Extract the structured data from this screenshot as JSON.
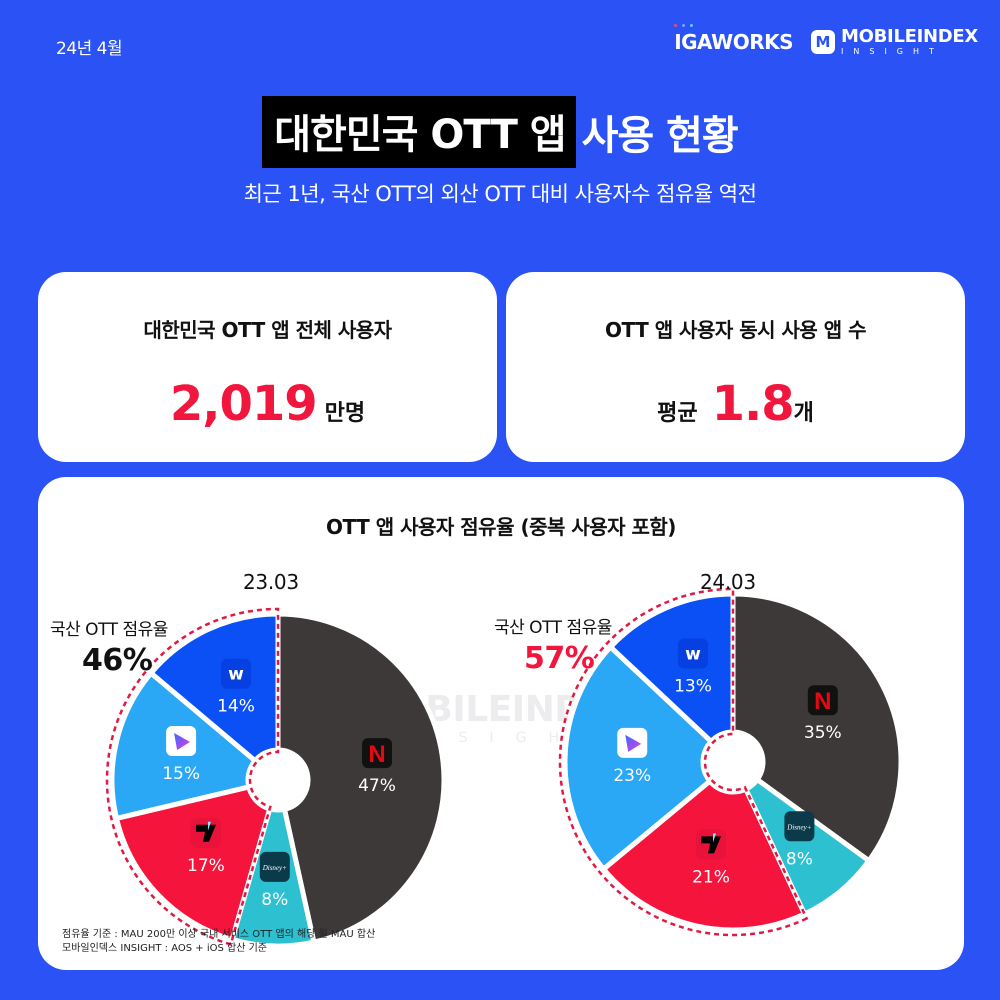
{
  "header": {
    "date": "24년 4월",
    "logo_igaworks": "IGAWORKS",
    "logo_mobileindex": "MOBILEINDEX",
    "logo_mobileindex_sub": "INSIGHT",
    "logo_mobileindex_badge": "M"
  },
  "title": {
    "highlight": "대한민국 OTT 앱",
    "rest": "사용 현황",
    "subtitle": "최근 1년, 국산 OTT의 외산 OTT 대비 사용자수 점유율 역전"
  },
  "cards": {
    "total_users": {
      "title": "대한민국 OTT 앱 전체 사용자",
      "value": "2,019",
      "unit": "만명"
    },
    "concurrent_apps": {
      "title": "OTT 앱 사용자 동시 사용 앱 수",
      "prefix": "평균",
      "value": "1.8",
      "unit": "개"
    }
  },
  "share_card": {
    "title": "OTT 앱 사용자 점유율 (중복 사용자 포함)",
    "watermark": "MOBILEINDEX",
    "watermark_sub": "INSIGHT",
    "footnote_1": "점유율 기준 : MAU 200만 이상 국내 서비스 OTT 앱의 해당 월 MAU 합산",
    "footnote_2": "모바일인덱스 INSIGHT : AOS + iOS 합산 기준",
    "left": {
      "date": "23.03",
      "domestic_label": "국산 OTT 점유율",
      "domestic_value": "46%"
    },
    "right": {
      "date": "24.03",
      "domestic_label": "국산 OTT 점유율",
      "domestic_value": "57%"
    }
  },
  "colors": {
    "background": "#2a52f5",
    "accent_red": "#f0163e",
    "netflix": "#3d3939",
    "disney": "#2cc0d0",
    "tving": "#f5143c",
    "coupang": "#2aa8f5",
    "wavve": "#0a50f5"
  },
  "chart_data": [
    {
      "type": "pie",
      "title": "OTT 앱 사용자 점유율 (중복 사용자 포함) - 23.03",
      "categories": [
        "Netflix",
        "Disney+",
        "Tving",
        "Coupang Play",
        "Wavve"
      ],
      "values": [
        47,
        8,
        17,
        15,
        14
      ],
      "labels": [
        "47%",
        "8%",
        "17%",
        "15%",
        "14%"
      ],
      "domestic": [
        "Tving",
        "Coupang Play",
        "Wavve"
      ],
      "annotation": "국산 OTT 점유율 46%"
    },
    {
      "type": "pie",
      "title": "OTT 앱 사용자 점유율 (중복 사용자 포함) - 24.03",
      "categories": [
        "Netflix",
        "Disney+",
        "Tving",
        "Coupang Play",
        "Wavve"
      ],
      "values": [
        35,
        8,
        21,
        23,
        13
      ],
      "labels": [
        "35%",
        "8%",
        "21%",
        "23%",
        "13%"
      ],
      "domestic": [
        "Tving",
        "Coupang Play",
        "Wavve"
      ],
      "annotation": "국산 OTT 점유율 57%"
    }
  ]
}
